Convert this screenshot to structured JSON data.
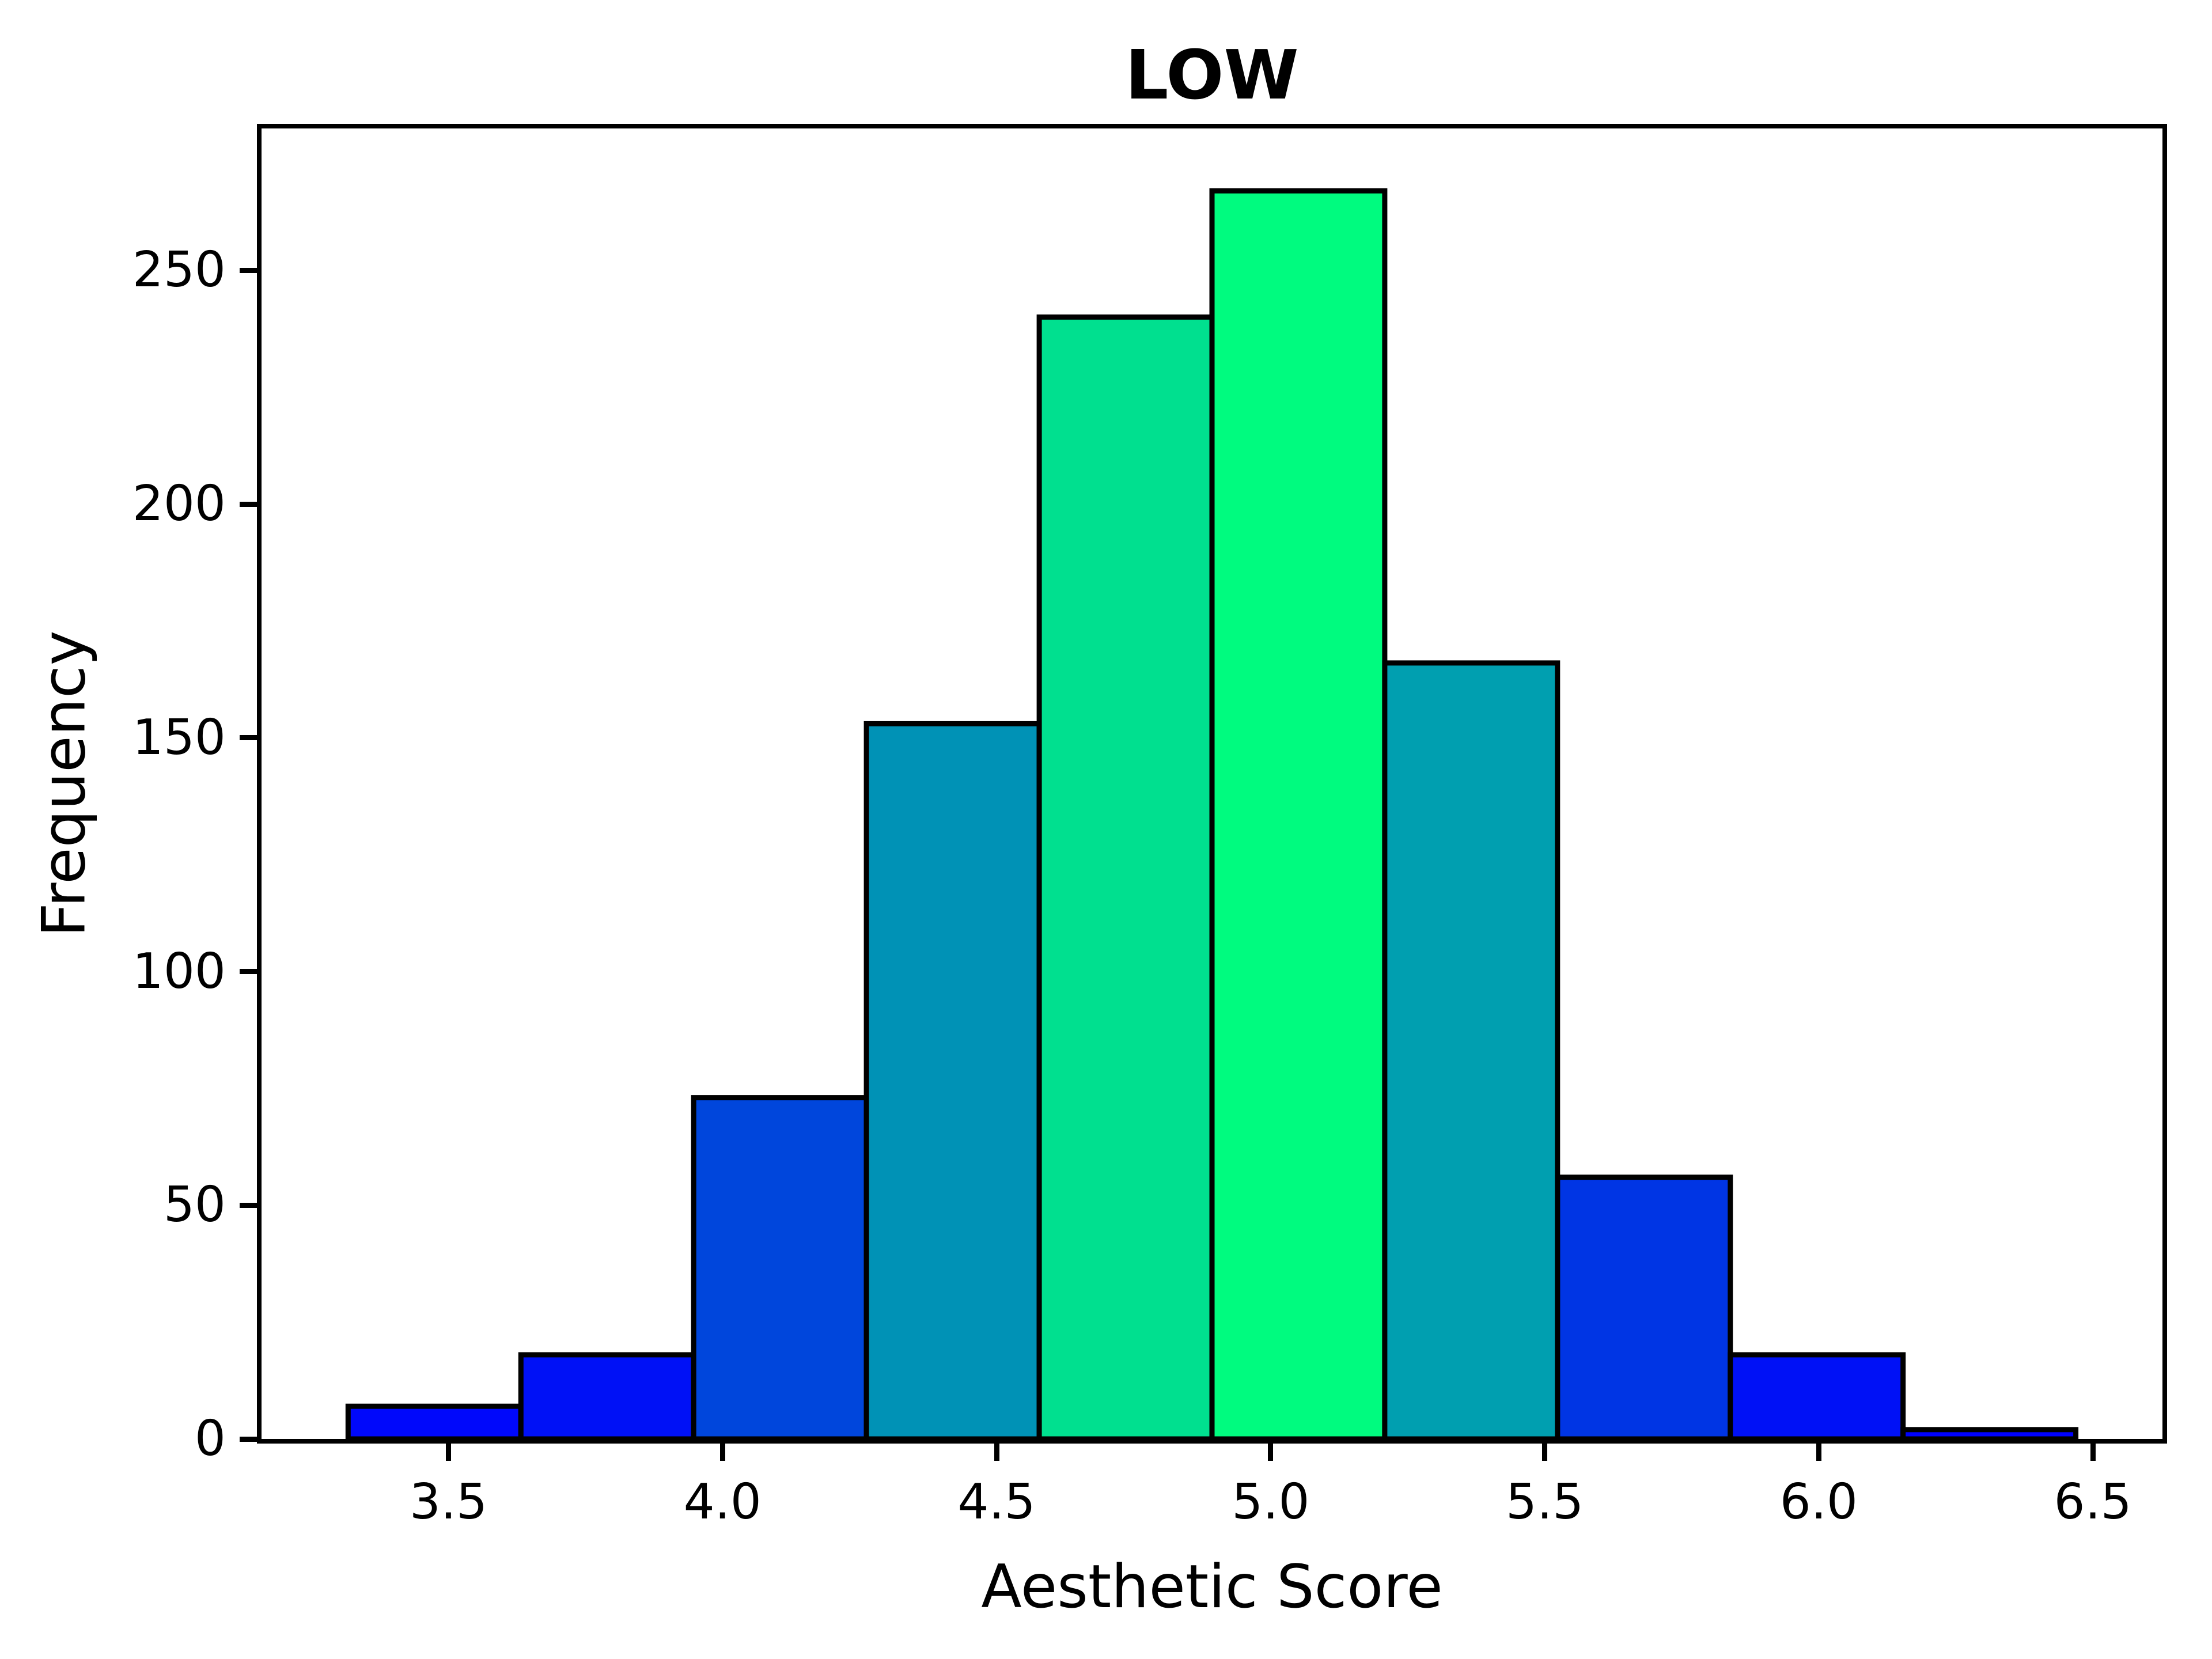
{
  "chart_data": {
    "type": "bar",
    "subtype": "histogram",
    "title": "LOW",
    "xlabel": "Aesthetic Score",
    "ylabel": "Frequency",
    "bin_edges": [
      3.317,
      3.6322,
      3.9474,
      4.2626,
      4.5778,
      4.893,
      5.2082,
      5.5234,
      5.8386,
      6.1538,
      6.469
    ],
    "values": [
      7,
      18,
      73,
      153,
      240,
      267,
      166,
      56,
      18,
      2
    ],
    "bar_colors": [
      "#0008FB",
      "#0011F6",
      "#0046DC",
      "#0092B6",
      "#00E08F",
      "#00FB7F",
      "#009FB0",
      "#0035E4",
      "#0011F6",
      "#0002FE"
    ],
    "bar_edge_color": "#000000",
    "x_ticks": [
      3.5,
      4.0,
      4.5,
      5.0,
      5.5,
      6.0,
      6.5
    ],
    "x_tick_labels": [
      "3.5",
      "4.0",
      "4.5",
      "5.0",
      "5.5",
      "6.0",
      "6.5"
    ],
    "y_ticks": [
      0,
      50,
      100,
      150,
      200,
      250
    ],
    "y_tick_labels": [
      "0",
      "50",
      "100",
      "150",
      "200",
      "250"
    ],
    "xlim": [
      3.159,
      6.627
    ],
    "ylim": [
      0,
      280.35
    ],
    "grid": false,
    "legend": "none"
  }
}
